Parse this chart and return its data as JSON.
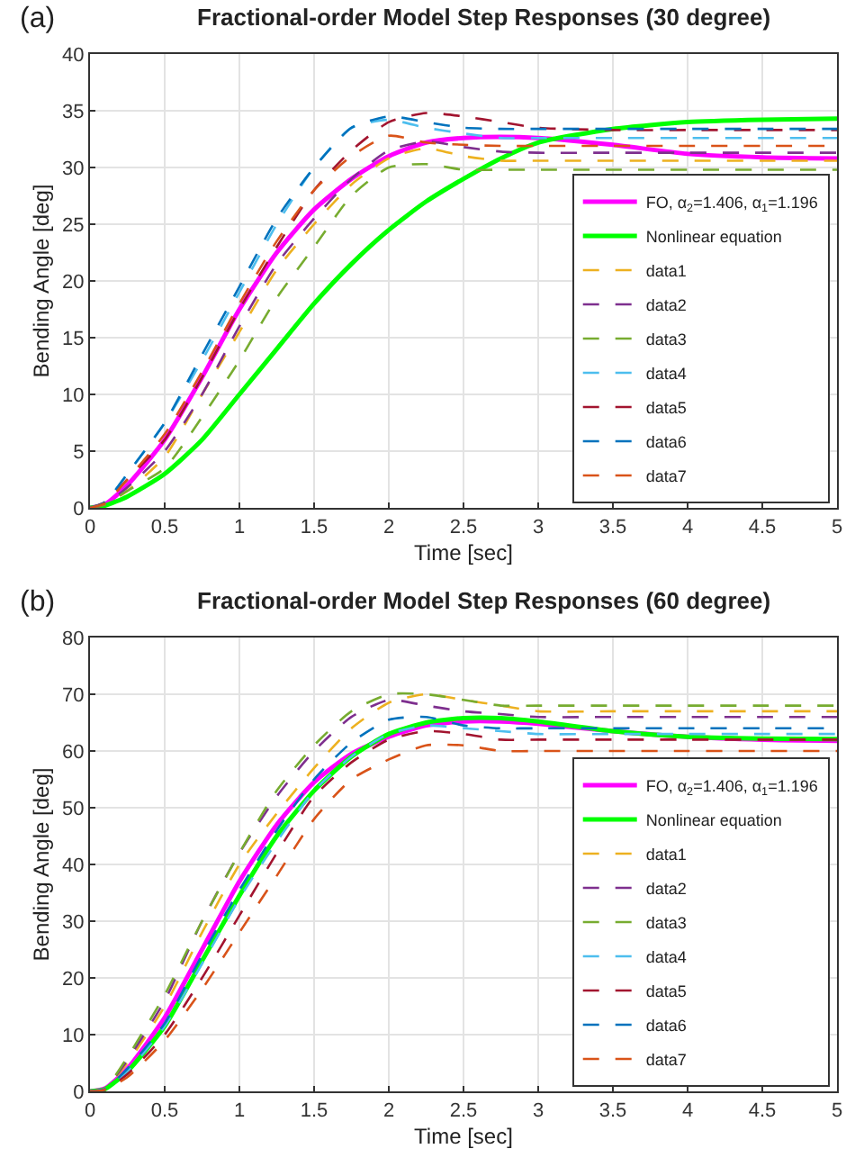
{
  "chart_data": [
    {
      "type": "line",
      "title": "Fractional-order Model Step Responses (30 degree)",
      "xlabel": "Time [sec]",
      "ylabel": "Bending Angle [deg]",
      "annotations": [
        "(a)"
      ],
      "x": [
        0,
        0.1,
        0.25,
        0.5,
        0.75,
        1,
        1.25,
        1.5,
        1.75,
        2,
        2.25,
        2.5,
        2.75,
        3,
        3.5,
        4,
        4.5,
        5
      ],
      "xlim": [
        0,
        5
      ],
      "xticks": [
        0,
        0.5,
        1,
        1.5,
        2,
        2.5,
        3,
        3.5,
        4,
        4.5,
        5
      ],
      "ylim": [
        0,
        40
      ],
      "yticks": [
        0,
        5,
        10,
        15,
        20,
        25,
        30,
        35,
        40
      ],
      "grid": true,
      "legend": "right",
      "series": [
        {
          "name": "FO, α$_{2}$=1.406, α$_{1}$=1.196",
          "color": "#ff00ff",
          "line_style": "solid",
          "values": [
            0,
            0.3,
            2,
            6,
            11.5,
            17.5,
            22.5,
            26.3,
            29,
            31,
            32.2,
            32.6,
            32.7,
            32.6,
            32,
            31.2,
            30.9,
            30.8
          ]
        },
        {
          "name": "Nonlinear equation",
          "color": "#00ff00",
          "line_style": "solid",
          "values": [
            0,
            0.2,
            1,
            3,
            6,
            10,
            14,
            18,
            21.5,
            24.5,
            27,
            29,
            30.8,
            32.2,
            33.4,
            34,
            34.2,
            34.3
          ]
        },
        {
          "name": "data1",
          "color": "#edb120",
          "line_style": "dashed",
          "values": [
            0,
            0.3,
            1.5,
            4.5,
            10,
            15.5,
            21,
            25,
            28.5,
            30.8,
            31.7,
            31,
            30.6,
            30.6,
            30.6,
            30.6,
            30.6,
            30.6
          ]
        },
        {
          "name": "data2",
          "color": "#7e2f8e",
          "line_style": "dashed",
          "values": [
            0,
            0.3,
            1.8,
            5,
            10,
            16,
            21.5,
            25.5,
            29,
            31.5,
            32.3,
            31.8,
            31.4,
            31.3,
            31.3,
            31.3,
            31.3,
            31.3
          ]
        },
        {
          "name": "data3",
          "color": "#77ac30",
          "line_style": "dashed",
          "values": [
            0,
            0.3,
            1.5,
            3.5,
            8,
            13,
            18.5,
            23,
            27.5,
            30,
            30.3,
            29.8,
            29.8,
            29.8,
            29.8,
            29.8,
            29.8,
            29.8
          ]
        },
        {
          "name": "data4",
          "color": "#4dbeee",
          "line_style": "dashed",
          "values": [
            0,
            0.5,
            3,
            7.5,
            13,
            19,
            25,
            30,
            33.5,
            34.2,
            33.5,
            33,
            32.6,
            32.6,
            32.6,
            32.6,
            32.6,
            32.6
          ]
        },
        {
          "name": "data5",
          "color": "#a2142f",
          "line_style": "dashed",
          "values": [
            0,
            0.5,
            2.5,
            6,
            11.5,
            17.5,
            23,
            28,
            31.5,
            34,
            34.8,
            34.5,
            34,
            33.5,
            33.3,
            33.3,
            33.3,
            33.3
          ]
        },
        {
          "name": "data6",
          "color": "#0072bd",
          "line_style": "dashed",
          "values": [
            0,
            0.5,
            3,
            7.5,
            13.5,
            19.5,
            25.5,
            30,
            33.5,
            34.5,
            34,
            33.5,
            33.4,
            33.4,
            33.4,
            33.4,
            33.4,
            33.4
          ]
        },
        {
          "name": "data7",
          "color": "#d95319",
          "line_style": "dashed",
          "values": [
            0,
            0.4,
            2.5,
            6.5,
            12,
            18,
            23.5,
            28,
            31,
            32.8,
            32.2,
            32,
            31.9,
            31.9,
            31.9,
            31.9,
            31.9,
            31.9
          ]
        }
      ]
    },
    {
      "type": "line",
      "title": "Fractional-order Model Step Responses (60 degree)",
      "xlabel": "Time [sec]",
      "ylabel": "Bending Angle [deg]",
      "annotations": [
        "(b)"
      ],
      "x": [
        0,
        0.1,
        0.25,
        0.5,
        0.75,
        1,
        1.25,
        1.5,
        1.75,
        2,
        2.25,
        2.5,
        2.75,
        3,
        3.5,
        4,
        4.5,
        5
      ],
      "xlim": [
        0,
        5
      ],
      "xticks": [
        0,
        0.5,
        1,
        1.5,
        2,
        2.5,
        3,
        3.5,
        4,
        4.5,
        5
      ],
      "ylim": [
        0,
        80
      ],
      "yticks": [
        0,
        10,
        20,
        30,
        40,
        50,
        60,
        70,
        80
      ],
      "grid": true,
      "legend": "right",
      "series": [
        {
          "name": "FO, α$_{2}$=1.406, α$_{1}$=1.196",
          "color": "#ff00ff",
          "line_style": "solid",
          "values": [
            0,
            0.5,
            4,
            13,
            25,
            37,
            47,
            54.5,
            59.5,
            62.5,
            64.5,
            65.2,
            65.2,
            64.8,
            63.5,
            62.5,
            62,
            61.8
          ]
        },
        {
          "name": "Nonlinear equation",
          "color": "#00ff00",
          "line_style": "solid",
          "values": [
            0,
            0.4,
            3.5,
            11.5,
            23,
            34.5,
            45,
            53,
            59,
            63,
            65,
            65.8,
            65.8,
            65.2,
            63.5,
            62.5,
            62.2,
            62.1
          ]
        },
        {
          "name": "data1",
          "color": "#edb120",
          "line_style": "dashed",
          "values": [
            0,
            0.5,
            5,
            15,
            28,
            40,
            49,
            57,
            64,
            68.5,
            70,
            69,
            68,
            67,
            67,
            67,
            67,
            67
          ]
        },
        {
          "name": "data2",
          "color": "#7e2f8e",
          "line_style": "dashed",
          "values": [
            0,
            0.5,
            5.5,
            16,
            30,
            42,
            52,
            60,
            66,
            69,
            68,
            67,
            66.5,
            66,
            66,
            66,
            66,
            66
          ]
        },
        {
          "name": "data3",
          "color": "#77ac30",
          "line_style": "dashed",
          "values": [
            0,
            0.5,
            6,
            17,
            30,
            42,
            53,
            61,
            67,
            70,
            70,
            69,
            68,
            68,
            68,
            68,
            68,
            68
          ]
        },
        {
          "name": "data4",
          "color": "#4dbeee",
          "line_style": "dashed",
          "values": [
            0,
            0.4,
            3.5,
            11.5,
            22.5,
            34,
            44,
            53,
            59,
            63,
            64.5,
            64,
            63.5,
            63,
            63,
            63,
            63,
            63
          ]
        },
        {
          "name": "data5",
          "color": "#a2142f",
          "line_style": "dashed",
          "values": [
            0,
            0.3,
            3,
            10,
            20,
            31,
            42,
            52,
            58,
            62,
            63.5,
            63,
            62,
            62,
            62,
            62,
            62,
            62
          ]
        },
        {
          "name": "data6",
          "color": "#0072bd",
          "line_style": "dashed",
          "values": [
            0,
            0.4,
            4,
            12,
            24,
            35.5,
            46,
            55,
            61.5,
            65.5,
            66,
            64.5,
            64,
            64,
            64,
            64,
            64,
            64
          ]
        },
        {
          "name": "data7",
          "color": "#d95319",
          "line_style": "dashed",
          "values": [
            0,
            0.3,
            2.5,
            9,
            18,
            28,
            38,
            48,
            55,
            58.5,
            61,
            61,
            60,
            60,
            60,
            60,
            60,
            60
          ]
        }
      ]
    }
  ]
}
